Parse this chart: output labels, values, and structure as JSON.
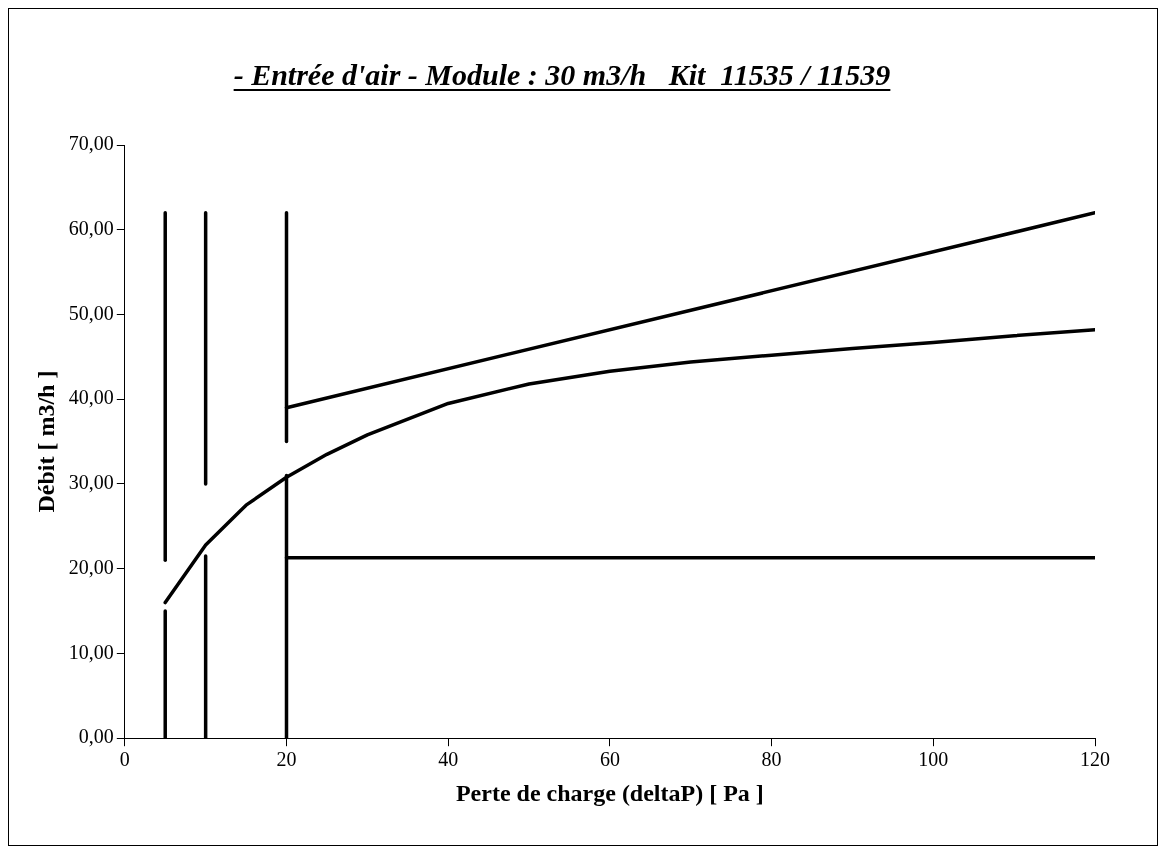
{
  "chart_data": {
    "type": "line",
    "title": "- Entrée d'air - Module : 30 m3/h   Kit  11535 / 11539",
    "xlabel": "Perte de charge (deltaP) [ Pa ]",
    "ylabel": "Débit [ m3/h ]",
    "xlim": [
      0,
      120
    ],
    "xticks": [
      0,
      20,
      40,
      60,
      80,
      100,
      120
    ],
    "ylim": [
      0,
      70
    ],
    "yticks": [
      {
        "value": 0,
        "label": "0,00"
      },
      {
        "value": 10,
        "label": "10,00"
      },
      {
        "value": 20,
        "label": "20,00"
      },
      {
        "value": 30,
        "label": "30,00"
      },
      {
        "value": 40,
        "label": "40,00"
      },
      {
        "value": 50,
        "label": "50,00"
      },
      {
        "value": 60,
        "label": "60,00"
      },
      {
        "value": 70,
        "label": "70,00"
      }
    ],
    "grid": false,
    "legend": false,
    "marker": "none",
    "line_style": "solid",
    "series": [
      {
        "color": "#000000",
        "x": [
          5,
          10,
          15,
          20,
          25,
          30,
          40,
          50,
          60,
          70,
          80,
          90,
          100,
          110,
          120
        ],
        "values": [
          16,
          22.8,
          27.5,
          30.8,
          33.5,
          35.8,
          39.5,
          41.8,
          43.3,
          44.4,
          45.2,
          46,
          46.7,
          47.5,
          48.2
        ]
      },
      {
        "color": "#000000",
        "x": [
          20,
          120
        ],
        "values": [
          39,
          62
        ]
      },
      {
        "color": "#000000",
        "x": [
          20,
          120
        ],
        "values": [
          21.3,
          21.3
        ]
      },
      {
        "color": "#000000",
        "x": [
          5,
          5
        ],
        "values": [
          0,
          15
        ]
      },
      {
        "color": "#000000",
        "x": [
          5,
          5
        ],
        "values": [
          21,
          62
        ]
      },
      {
        "color": "#000000",
        "x": [
          10,
          10
        ],
        "values": [
          0,
          21.5
        ]
      },
      {
        "color": "#000000",
        "x": [
          10,
          10
        ],
        "values": [
          30,
          62
        ]
      },
      {
        "color": "#000000",
        "x": [
          20,
          20
        ],
        "values": [
          0,
          31
        ]
      },
      {
        "color": "#000000",
        "x": [
          20,
          20
        ],
        "values": [
          35,
          62
        ]
      }
    ]
  }
}
